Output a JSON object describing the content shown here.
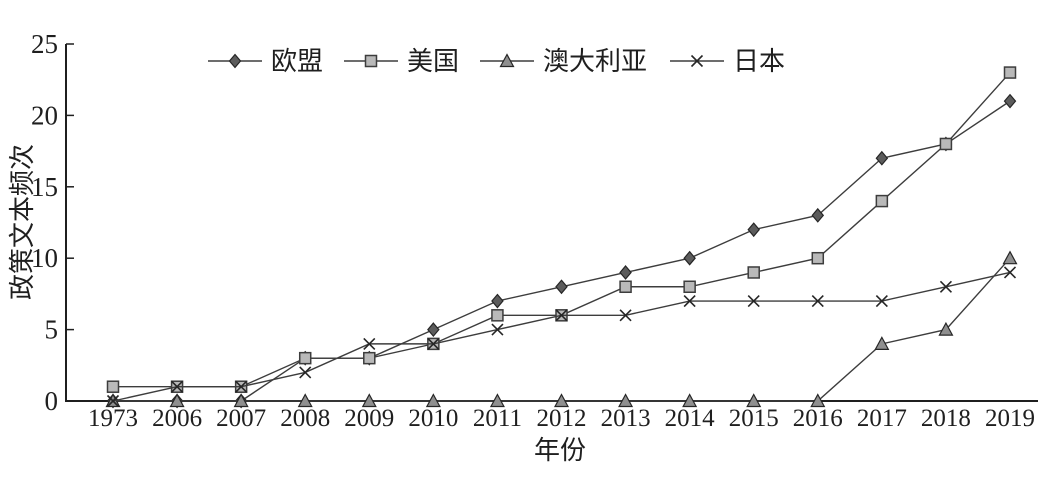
{
  "chart_data": {
    "type": "line",
    "title": "",
    "xlabel": "年份",
    "ylabel": "政策文本频次",
    "ylim": [
      0,
      25
    ],
    "yticks": [
      0,
      5,
      10,
      15,
      20,
      25
    ],
    "grid": false,
    "legend_position": "top-center",
    "categories": [
      "1973",
      "2006",
      "2007",
      "2008",
      "2009",
      "2010",
      "2011",
      "2012",
      "2013",
      "2014",
      "2015",
      "2016",
      "2017",
      "2018",
      "2019"
    ],
    "series": [
      {
        "id": "eu",
        "name": "欧盟",
        "marker": "diamond",
        "color": "#5c5c5c",
        "edge": "#262626",
        "values": [
          0,
          0,
          0,
          3,
          3,
          5,
          7,
          8,
          9,
          10,
          12,
          13,
          17,
          18,
          21
        ]
      },
      {
        "id": "us",
        "name": "美国",
        "marker": "square",
        "color": "#b9b9b9",
        "edge": "#3d3d3d",
        "values": [
          1,
          1,
          1,
          3,
          3,
          4,
          6,
          6,
          8,
          8,
          9,
          10,
          14,
          18,
          23
        ]
      },
      {
        "id": "australia",
        "name": "澳大利亚",
        "marker": "triangle",
        "color": "#8f8f8f",
        "edge": "#262626",
        "values": [
          0,
          0,
          0,
          0,
          0,
          0,
          0,
          0,
          0,
          0,
          0,
          0,
          4,
          5,
          10
        ]
      },
      {
        "id": "japan",
        "name": "日本",
        "marker": "x",
        "color": "#262626",
        "edge": "#262626",
        "values": [
          0,
          1,
          1,
          2,
          4,
          4,
          5,
          6,
          6,
          7,
          7,
          7,
          7,
          8,
          9
        ]
      }
    ],
    "colors": {
      "axis": "#1f1f1f",
      "text": "#1f1f1f",
      "line": "#3d3d3d",
      "background": "#ffffff"
    }
  }
}
